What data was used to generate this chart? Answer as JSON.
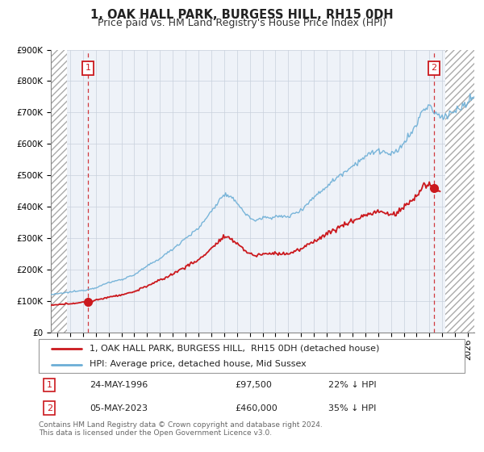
{
  "title": "1, OAK HALL PARK, BURGESS HILL, RH15 0DH",
  "subtitle": "Price paid vs. HM Land Registry's House Price Index (HPI)",
  "ylim": [
    0,
    900000
  ],
  "yticks": [
    0,
    100000,
    200000,
    300000,
    400000,
    500000,
    600000,
    700000,
    800000,
    900000
  ],
  "ytick_labels": [
    "£0",
    "£100K",
    "£200K",
    "£300K",
    "£400K",
    "£500K",
    "£600K",
    "£700K",
    "£800K",
    "£900K"
  ],
  "xlim_start": 1993.5,
  "xlim_end": 2026.5,
  "hpi_color": "#6baed6",
  "sale_color": "#cb181d",
  "point1_x": 1996.39,
  "point1_y": 97500,
  "point2_x": 2023.34,
  "point2_y": 460000,
  "hatch_left_end": 1994.75,
  "hatch_right_start": 2024.25,
  "legend_line1": "1, OAK HALL PARK, BURGESS HILL,  RH15 0DH (detached house)",
  "legend_line2": "HPI: Average price, detached house, Mid Sussex",
  "table_row1_num": "1",
  "table_row1_date": "24-MAY-1996",
  "table_row1_price": "£97,500",
  "table_row1_hpi": "22% ↓ HPI",
  "table_row2_num": "2",
  "table_row2_date": "05-MAY-2023",
  "table_row2_price": "£460,000",
  "table_row2_hpi": "35% ↓ HPI",
  "footnote": "Contains HM Land Registry data © Crown copyright and database right 2024.\nThis data is licensed under the Open Government Licence v3.0.",
  "background_color": "#eef2f8",
  "grid_color": "#c8d0dc",
  "title_fontsize": 10.5,
  "subtitle_fontsize": 9,
  "tick_fontsize": 7.5,
  "legend_fontsize": 8,
  "footnote_fontsize": 6.5
}
